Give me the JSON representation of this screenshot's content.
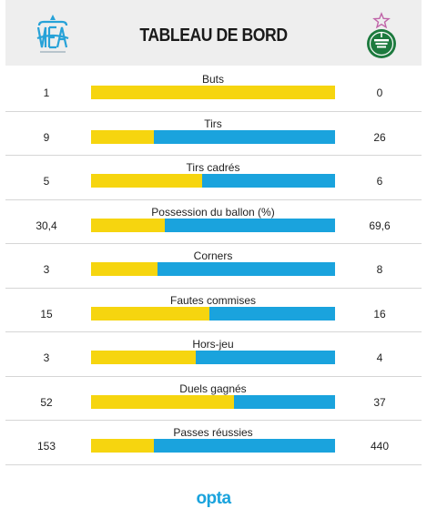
{
  "header": {
    "title": "TABLEAU DE BORD",
    "home_logo_icon": "om-crest-icon",
    "away_logo_icon": "asse-crest-icon"
  },
  "colors": {
    "home": "#f6d50f",
    "away": "#1aa3dd"
  },
  "stats": [
    {
      "label": "Buts",
      "home": "1",
      "away": "0",
      "home_value": 1,
      "away_value": 0
    },
    {
      "label": "Tirs",
      "home": "9",
      "away": "26",
      "home_value": 9,
      "away_value": 26
    },
    {
      "label": "Tirs cadrés",
      "home": "5",
      "away": "6",
      "home_value": 5,
      "away_value": 6
    },
    {
      "label": "Possession du ballon (%)",
      "home": "30,4",
      "away": "69,6",
      "home_value": 30.4,
      "away_value": 69.6
    },
    {
      "label": "Corners",
      "home": "3",
      "away": "8",
      "home_value": 3,
      "away_value": 8
    },
    {
      "label": "Fautes commises",
      "home": "15",
      "away": "16",
      "home_value": 15,
      "away_value": 16
    },
    {
      "label": "Hors-jeu",
      "home": "3",
      "away": "4",
      "home_value": 3,
      "away_value": 4
    },
    {
      "label": "Duels gagnés",
      "home": "52",
      "away": "37",
      "home_value": 52,
      "away_value": 37
    },
    {
      "label": "Passes réussies",
      "home": "153",
      "away": "440",
      "home_value": 153,
      "away_value": 440
    }
  ],
  "footer": {
    "brand": "opta"
  }
}
